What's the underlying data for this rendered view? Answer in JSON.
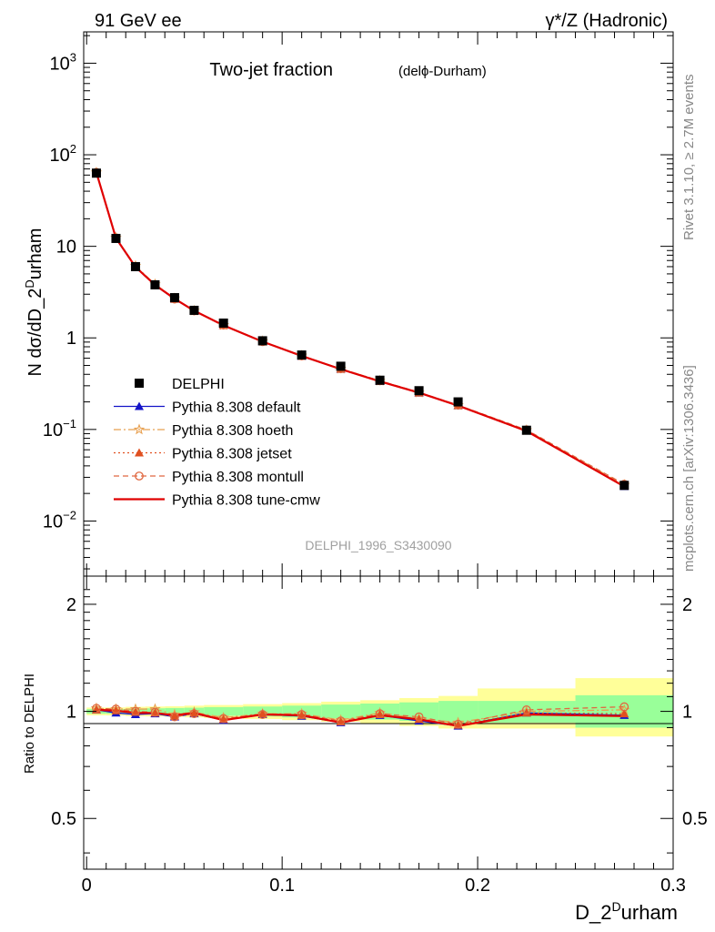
{
  "header": {
    "left": "91 GeV ee",
    "right": "γ*/Z (Hadronic)"
  },
  "side_labels": {
    "rivet": "Rivet 3.1.10, ≥ 2.7M events",
    "mcplots": "mcplots.cern.ch [arXiv:1306.3436]"
  },
  "chart_data": [
    {
      "type": "line",
      "title": "Two-jet fraction",
      "title_suffix": "(delϕ-Durham)",
      "watermark": "DELPHI_1996_S3430090",
      "ylabel": "N dσ/dD_2Durham",
      "ylabel_parts": {
        "pre": "N dσ/dD_2",
        "sup": "D",
        "post": "urham"
      },
      "yscale": "log",
      "ylim": [
        0.0025,
        2200
      ],
      "xlim": [
        -0.0015,
        0.3
      ],
      "y_ticks": [
        {
          "v": 1000,
          "base": "10",
          "exp": "3"
        },
        {
          "v": 100,
          "base": "10",
          "exp": "2"
        },
        {
          "v": 10,
          "base": "10",
          "exp": ""
        },
        {
          "v": 1,
          "base": "1",
          "exp": ""
        },
        {
          "v": 0.1,
          "base": "10",
          "exp": "−1"
        },
        {
          "v": 0.01,
          "base": "10",
          "exp": "−2"
        }
      ],
      "legend_placement": "middle-left",
      "x": [
        0.005,
        0.015,
        0.025,
        0.035,
        0.045,
        0.055,
        0.07,
        0.09,
        0.11,
        0.13,
        0.15,
        0.17,
        0.19,
        0.225,
        0.275
      ],
      "data": {
        "name": "DELPHI",
        "values": [
          63,
          12.2,
          6.0,
          3.8,
          2.75,
          2.0,
          1.45,
          0.93,
          0.65,
          0.49,
          0.345,
          0.265,
          0.2,
          0.098,
          0.0245
        ]
      },
      "series": [
        {
          "name": "Pythia 8.308 default",
          "color": "#1414c8",
          "marker": "triangle",
          "dash": "",
          "values": [
            63.5,
            12.1,
            5.9,
            3.75,
            2.65,
            1.97,
            1.37,
            0.91,
            0.63,
            0.455,
            0.335,
            0.25,
            0.182,
            0.097,
            0.0239
          ]
        },
        {
          "name": "Pythia 8.308 hoeth",
          "color": "#e8a050",
          "marker": "star",
          "dash": "8,3,2,3",
          "values": [
            64,
            12.4,
            6.1,
            3.85,
            2.7,
            1.98,
            1.38,
            0.92,
            0.64,
            0.46,
            0.34,
            0.252,
            0.184,
            0.098,
            0.0248
          ]
        },
        {
          "name": "Pythia 8.308 jetset",
          "color": "#e05020",
          "marker": "triangle",
          "dash": "2,3",
          "values": [
            63.7,
            12.3,
            6.0,
            3.8,
            2.66,
            1.98,
            1.37,
            0.915,
            0.635,
            0.458,
            0.338,
            0.252,
            0.183,
            0.097,
            0.0242
          ]
        },
        {
          "name": "Pythia 8.308 montull",
          "color": "#e06840",
          "marker": "circle",
          "dash": "6,4",
          "values": [
            64.2,
            12.4,
            6.0,
            3.8,
            2.65,
            1.97,
            1.38,
            0.91,
            0.635,
            0.46,
            0.34,
            0.255,
            0.184,
            0.099,
            0.0252
          ]
        },
        {
          "name": "Pythia 8.308 tune-cmw",
          "color": "#e00000",
          "marker": "none",
          "dash": "",
          "values": [
            64,
            12.3,
            5.95,
            3.78,
            2.68,
            1.98,
            1.37,
            0.91,
            0.635,
            0.455,
            0.335,
            0.252,
            0.182,
            0.096,
            0.0238
          ]
        }
      ]
    },
    {
      "type": "line",
      "ylabel": "Ratio to DELPHI",
      "xlabel": "D_2Durham",
      "xlabel_parts": {
        "pre": "D_2",
        "sup": "D",
        "post": "urham"
      },
      "ylim": [
        0.36,
        2.4
      ],
      "yscale": "log",
      "xlim": [
        -0.0015,
        0.3
      ],
      "y_ticks": [
        0.5,
        1,
        2
      ],
      "y_tick_labels": [
        "0.5",
        "1",
        "2"
      ],
      "x_ticks": [
        0,
        0.1,
        0.2,
        0.3
      ],
      "x_tick_labels": [
        "0",
        "0.1",
        "0.2",
        "0.3"
      ],
      "bins": [
        [
          0,
          0.01
        ],
        [
          0.01,
          0.02
        ],
        [
          0.02,
          0.03
        ],
        [
          0.03,
          0.04
        ],
        [
          0.04,
          0.05
        ],
        [
          0.05,
          0.06
        ],
        [
          0.06,
          0.08
        ],
        [
          0.08,
          0.1
        ],
        [
          0.1,
          0.12
        ],
        [
          0.12,
          0.14
        ],
        [
          0.14,
          0.16
        ],
        [
          0.16,
          0.18
        ],
        [
          0.18,
          0.2
        ],
        [
          0.2,
          0.25
        ],
        [
          0.25,
          0.3
        ]
      ],
      "band_inner": [
        [
          0.985,
          1.015
        ],
        [
          0.985,
          1.015
        ],
        [
          0.982,
          1.018
        ],
        [
          0.98,
          1.02
        ],
        [
          0.978,
          1.022
        ],
        [
          0.976,
          1.024
        ],
        [
          0.972,
          1.028
        ],
        [
          0.968,
          1.032
        ],
        [
          0.962,
          1.038
        ],
        [
          0.955,
          1.045
        ],
        [
          0.948,
          1.052
        ],
        [
          0.94,
          1.06
        ],
        [
          0.93,
          1.07
        ],
        [
          0.93,
          1.07
        ],
        [
          0.9,
          1.11
        ]
      ],
      "band_outer": [
        [
          0.975,
          1.025
        ],
        [
          0.974,
          1.026
        ],
        [
          0.97,
          1.03
        ],
        [
          0.968,
          1.032
        ],
        [
          0.966,
          1.034
        ],
        [
          0.962,
          1.038
        ],
        [
          0.958,
          1.042
        ],
        [
          0.952,
          1.048
        ],
        [
          0.945,
          1.055
        ],
        [
          0.935,
          1.065
        ],
        [
          0.925,
          1.075
        ],
        [
          0.91,
          1.09
        ],
        [
          0.895,
          1.105
        ],
        [
          0.895,
          1.16
        ],
        [
          0.85,
          1.24
        ]
      ],
      "series": [
        {
          "name": "Pythia 8.308 default",
          "values": [
            1.01,
            0.99,
            0.98,
            0.985,
            0.965,
            0.985,
            0.945,
            0.98,
            0.97,
            0.93,
            0.975,
            0.94,
            0.91,
            0.99,
            0.975
          ]
        },
        {
          "name": "Pythia 8.308 hoeth",
          "values": [
            1.02,
            1.015,
            1.015,
            1.015,
            0.98,
            0.995,
            0.96,
            0.985,
            0.985,
            0.945,
            0.99,
            0.955,
            0.93,
            1.0,
            1.01
          ]
        },
        {
          "name": "Pythia 8.308 jetset",
          "values": [
            1.01,
            1.005,
            0.995,
            0.99,
            0.97,
            0.99,
            0.95,
            0.985,
            0.975,
            0.935,
            0.98,
            0.95,
            0.915,
            0.99,
            0.985
          ]
        },
        {
          "name": "Pythia 8.308 montull",
          "values": [
            1.02,
            1.015,
            1.0,
            0.995,
            0.965,
            0.985,
            0.955,
            0.98,
            0.98,
            0.94,
            0.985,
            0.965,
            0.92,
            1.01,
            1.03
          ]
        },
        {
          "name": "Pythia 8.308 tune-cmw",
          "values": [
            1.01,
            1.005,
            0.99,
            0.99,
            0.975,
            0.99,
            0.945,
            0.98,
            0.975,
            0.93,
            0.975,
            0.95,
            0.91,
            0.98,
            0.97
          ]
        }
      ]
    }
  ]
}
